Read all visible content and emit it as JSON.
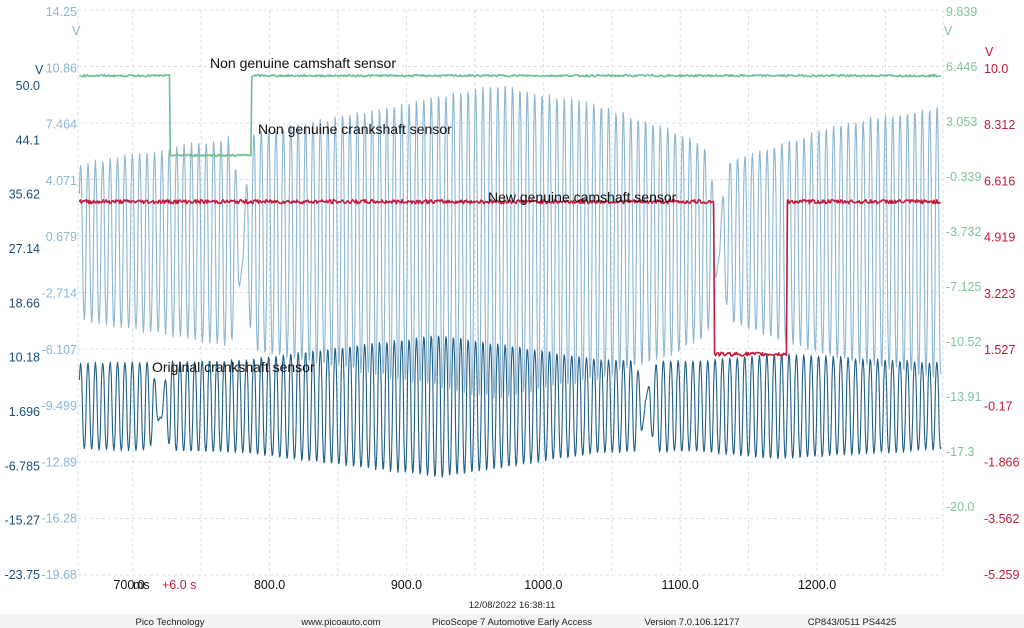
{
  "chart_data": {
    "type": "line",
    "x_unit": "ms",
    "x_offset_label": "+6.0 s",
    "xticks": [
      "700.0",
      "800.0",
      "900.0",
      "1000.0",
      "1100.0",
      "1200.0"
    ],
    "xticks_values": [
      700,
      800,
      900,
      1000,
      1100,
      1200
    ],
    "xlim": [
      660,
      1292
    ],
    "grid": true,
    "axes": {
      "a": {
        "unit": "V",
        "color": "#1a4f7a",
        "ticks": [
          "50.0",
          "44.1",
          "35.62",
          "27.14",
          "18.66",
          "10.18",
          "1.696",
          "-6.785",
          "-15.27",
          "-23.75"
        ]
      },
      "b": {
        "unit": "V",
        "color": "#8cb6d3",
        "ticks": [
          "14.25",
          "10.86",
          "7.464",
          "4.071",
          "0.679",
          "-2.714",
          "-6.107",
          "-9.499",
          "-12.89",
          "-16.28",
          "-19.68"
        ]
      },
      "c": {
        "unit": "V",
        "color": "#7fc49a",
        "ticks": [
          "9.839",
          "6.446",
          "3.053",
          "-0.339",
          "-3.732",
          "-7.125",
          "-10.52",
          "-13.91",
          "-17.3",
          "-20.0"
        ]
      },
      "d": {
        "unit": "V",
        "color": "#c21a3a",
        "ticks": [
          "10.0",
          "8.312",
          "6.616",
          "4.919",
          "3.223",
          "1.527",
          "-0.17",
          "-1.866",
          "-3.562",
          "-5.259"
        ]
      }
    },
    "series": [
      {
        "name": "Non genuine camshaft sensor",
        "channel": "c",
        "color": "#6cbf8c",
        "shape": "square",
        "high_v": 6.0,
        "low_v": 1.2,
        "low_segments_ms": [
          [
            727,
            787
          ]
        ]
      },
      {
        "name": "Non genuine crankshaft sensor",
        "channel": "b",
        "color": "#8cb6d3",
        "shape": "tooth-wheel",
        "center_v": 0.4,
        "amplitude_v": [
          4.7,
          6.4,
          9.5,
          8.3,
          6.6,
          4.8,
          7.2,
          8.2
        ],
        "amplitude_at_ms": [
          665,
          780,
          965,
          1040,
          1100,
          1135,
          1220,
          1290
        ],
        "gaps_ms": [
          780,
          1128
        ],
        "tooth_period_ms": 5.4
      },
      {
        "name": "New genuine camshaft sensor",
        "channel": "d",
        "color": "#c21a3a",
        "shape": "square",
        "high_v": 6.0,
        "low_v": 1.4,
        "low_segments_ms": [
          [
            1125,
            1178
          ]
        ]
      },
      {
        "name": "Original crankshaft sensor",
        "channel": "a",
        "color": "#1f5f87",
        "shape": "tooth-wheel",
        "center_v": 1.7,
        "amplitude_v": [
          6.5,
          7.0,
          10.8,
          7.0,
          6.8,
          8.0,
          6.5
        ],
        "amplitude_at_ms": [
          665,
          780,
          925,
          1040,
          1110,
          1170,
          1290
        ],
        "gaps_ms": [
          720,
          1075
        ],
        "tooth_period_ms": 5.4
      }
    ]
  },
  "annotations": {
    "cam_non_genuine": "Non genuine camshaft sensor",
    "crank_non_genuine": "Non genuine crankshaft sensor",
    "cam_genuine": "New genuine camshaft sensor",
    "crank_original": "Original crankshaft sensor"
  },
  "timestamp": "12/08/2022 16:38:11",
  "footer": {
    "company": "Pico Technology",
    "url": "www.picoauto.com",
    "product": "PicoScope 7 Automotive Early Access",
    "version": "Version 7.0.106.12177",
    "device": "CP843/0511 PS4425"
  }
}
